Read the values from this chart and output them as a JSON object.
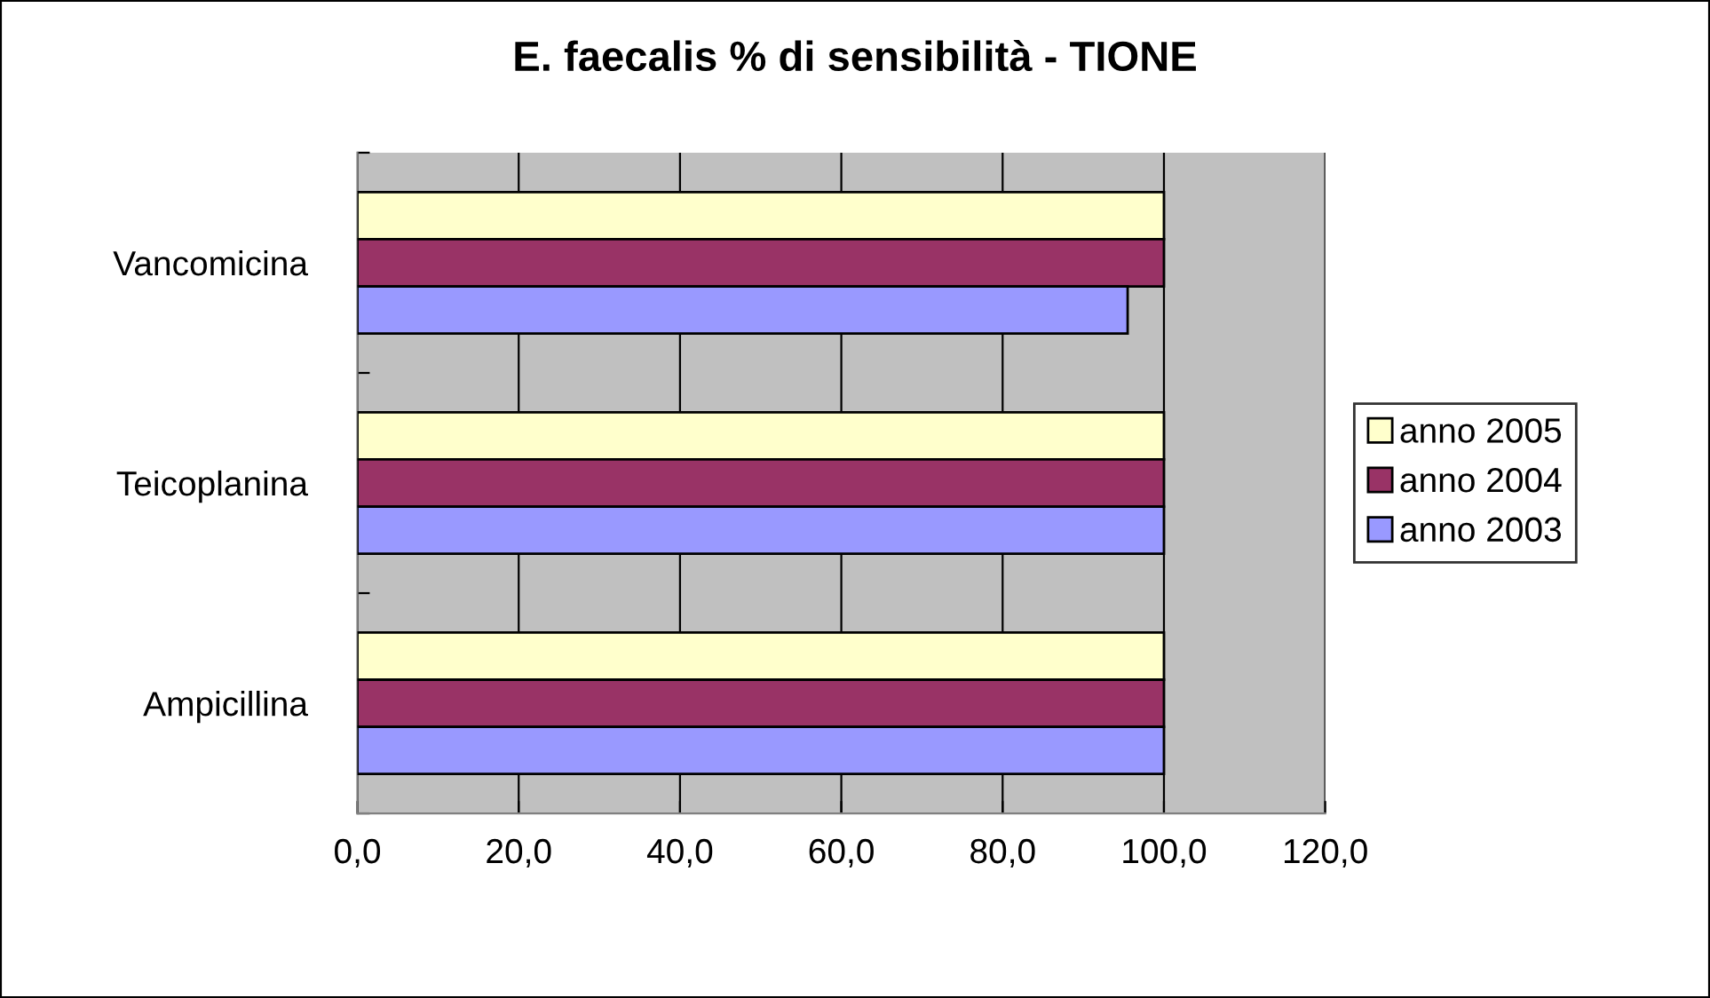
{
  "chart_data": {
    "type": "bar",
    "orientation": "horizontal",
    "title": "E. faecalis % di sensibilità - TIONE",
    "categories": [
      "Vancomicina",
      "Teicoplanina",
      "Ampicillina"
    ],
    "series": [
      {
        "name": "anno 2005",
        "color": "#ffffcc",
        "values": [
          100,
          100,
          100
        ]
      },
      {
        "name": "anno 2004",
        "color": "#993366",
        "values": [
          100,
          100,
          100
        ]
      },
      {
        "name": "anno 2003",
        "color": "#9999ff",
        "values": [
          95.5,
          100,
          100
        ]
      }
    ],
    "xlim": [
      0,
      120
    ],
    "xticks": [
      {
        "value": 0,
        "label": "0,0"
      },
      {
        "value": 20,
        "label": "20,0"
      },
      {
        "value": 40,
        "label": "40,0"
      },
      {
        "value": 60,
        "label": "60,0"
      },
      {
        "value": 80,
        "label": "80,0"
      },
      {
        "value": 100,
        "label": "100,0"
      },
      {
        "value": 120,
        "label": "120,0"
      }
    ],
    "grid": "x",
    "legend": "right"
  }
}
